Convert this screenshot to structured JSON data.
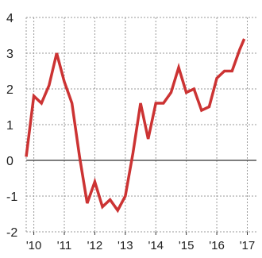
{
  "chart_data": {
    "type": "line",
    "title": "",
    "xlabel": "",
    "ylabel": "",
    "ylim": [
      -2,
      4
    ],
    "grid": true,
    "y_ticks": [
      {
        "value": 4,
        "label": "4"
      },
      {
        "value": 3,
        "label": "3"
      },
      {
        "value": 2,
        "label": "2"
      },
      {
        "value": 1,
        "label": "1"
      },
      {
        "value": 0,
        "label": "0"
      },
      {
        "value": -1,
        "label": "-1"
      },
      {
        "value": -2,
        "label": "-2"
      }
    ],
    "x_ticks": [
      {
        "value": 2010.0,
        "label": "'10"
      },
      {
        "value": 2011.0,
        "label": "'11"
      },
      {
        "value": 2012.0,
        "label": "'12"
      },
      {
        "value": 2013.0,
        "label": "'13"
      },
      {
        "value": 2014.0,
        "label": "'14"
      },
      {
        "value": 2015.0,
        "label": "'15"
      },
      {
        "value": 2016.0,
        "label": "'16"
      },
      {
        "value": 2017.0,
        "label": "'17"
      }
    ],
    "xlim": [
      2009.75,
      2017.3
    ],
    "series": [
      {
        "name": "",
        "color": "#cc3333",
        "points": [
          {
            "x": 2009.75,
            "y": 0.1
          },
          {
            "x": 2010.0,
            "y": 1.8
          },
          {
            "x": 2010.25,
            "y": 1.6
          },
          {
            "x": 2010.5,
            "y": 2.1
          },
          {
            "x": 2010.75,
            "y": 3.0
          },
          {
            "x": 2011.0,
            "y": 2.2
          },
          {
            "x": 2011.25,
            "y": 1.6
          },
          {
            "x": 2011.5,
            "y": 0.1
          },
          {
            "x": 2011.75,
            "y": -1.2
          },
          {
            "x": 2012.0,
            "y": -0.6
          },
          {
            "x": 2012.25,
            "y": -1.3
          },
          {
            "x": 2012.5,
            "y": -1.1
          },
          {
            "x": 2012.75,
            "y": -1.4
          },
          {
            "x": 2013.0,
            "y": -1.0
          },
          {
            "x": 2013.25,
            "y": 0.2
          },
          {
            "x": 2013.5,
            "y": 1.6
          },
          {
            "x": 2013.75,
            "y": 0.6
          },
          {
            "x": 2014.0,
            "y": 1.6
          },
          {
            "x": 2014.25,
            "y": 1.6
          },
          {
            "x": 2014.5,
            "y": 1.9
          },
          {
            "x": 2014.75,
            "y": 2.6
          },
          {
            "x": 2015.0,
            "y": 1.9
          },
          {
            "x": 2015.25,
            "y": 2.0
          },
          {
            "x": 2015.5,
            "y": 1.4
          },
          {
            "x": 2015.75,
            "y": 1.5
          },
          {
            "x": 2016.0,
            "y": 2.3
          },
          {
            "x": 2016.25,
            "y": 2.5
          },
          {
            "x": 2016.5,
            "y": 2.5
          },
          {
            "x": 2016.75,
            "y": 3.1
          },
          {
            "x": 2016.9,
            "y": 3.4
          }
        ]
      }
    ]
  }
}
